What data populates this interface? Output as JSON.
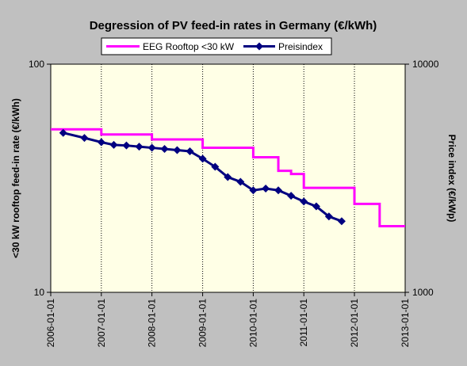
{
  "chart_data": {
    "type": "line",
    "title": "Degression of PV feed-in rates in Germany (€/kWh)",
    "ylabel": "<30 kW rooftop feed-in rate (€/kWh)",
    "y2label": "Price index (€/kWp)",
    "ylim": [
      10,
      100
    ],
    "y2lim": [
      1000,
      10000
    ],
    "yscale": "log",
    "xlim": [
      "2006-01-01",
      "2013-01-01"
    ],
    "x_ticks": [
      "2006-01-01",
      "2007-01-01",
      "2008-01-01",
      "2009-01-01",
      "2010-01-01",
      "2011-01-01",
      "2012-01-01",
      "2013-01-01"
    ],
    "y_ticks": [
      10,
      100
    ],
    "y2_ticks": [
      1000,
      10000
    ],
    "grid": "vertical dotted at each year",
    "legend_position": "top",
    "background": "#ffffe6",
    "series": [
      {
        "name": "EEG Rooftop <30 kW",
        "color": "#ff00ff",
        "axis": "left",
        "style": "step",
        "x": [
          "2006-01-01",
          "2007-01-01",
          "2008-01-01",
          "2009-01-01",
          "2010-01-01",
          "2010-07-01",
          "2010-10-01",
          "2011-01-01",
          "2012-01-01",
          "2012-07-01",
          "2013-01-01"
        ],
        "values": [
          51.8,
          49.2,
          46.8,
          43.0,
          39.1,
          34.1,
          33.0,
          28.7,
          24.4,
          19.5,
          19.5
        ]
      },
      {
        "name": "Preisindex",
        "color": "#000080",
        "axis": "right",
        "style": "line-markers",
        "x": [
          "2006-04-01",
          "2006-09-01",
          "2007-01-01",
          "2007-04-01",
          "2007-07-01",
          "2007-10-01",
          "2008-01-01",
          "2008-04-01",
          "2008-07-01",
          "2008-10-01",
          "2009-01-01",
          "2009-04-01",
          "2009-07-01",
          "2009-10-01",
          "2010-01-01",
          "2010-04-01",
          "2010-07-01",
          "2010-10-01",
          "2011-01-01",
          "2011-04-01",
          "2011-07-01",
          "2011-10-01"
        ],
        "values": [
          5000,
          4750,
          4550,
          4430,
          4400,
          4350,
          4300,
          4250,
          4200,
          4150,
          3850,
          3550,
          3200,
          3050,
          2800,
          2850,
          2800,
          2650,
          2500,
          2380,
          2150,
          2050
        ]
      }
    ]
  }
}
